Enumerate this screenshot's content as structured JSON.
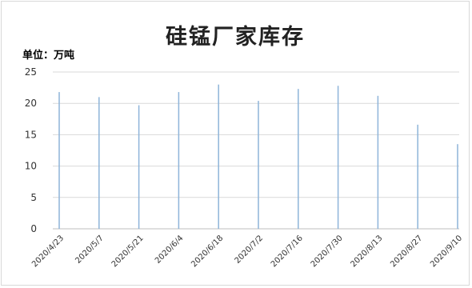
{
  "chart_data": {
    "type": "bar",
    "title": "硅锰厂家库存",
    "unit_label": "单位：万吨",
    "categories": [
      "2020/4/23",
      "2020/5/7",
      "2020/5/21",
      "2020/6/4",
      "2020/6/18",
      "2020/7/2",
      "2020/7/16",
      "2020/7/30",
      "2020/8/13",
      "2020/8/27",
      "2020/9/10"
    ],
    "values": [
      21.8,
      21.0,
      19.7,
      21.8,
      23.0,
      20.4,
      22.3,
      22.8,
      21.2,
      16.6,
      13.5
    ],
    "ylim": [
      0,
      25
    ],
    "yticks": [
      0,
      5,
      10,
      15,
      20,
      25
    ],
    "grid": true,
    "colors": {
      "bar": "#8eb4d9",
      "grid": "#d9d9d9",
      "axis": "#bfbfbf"
    }
  }
}
